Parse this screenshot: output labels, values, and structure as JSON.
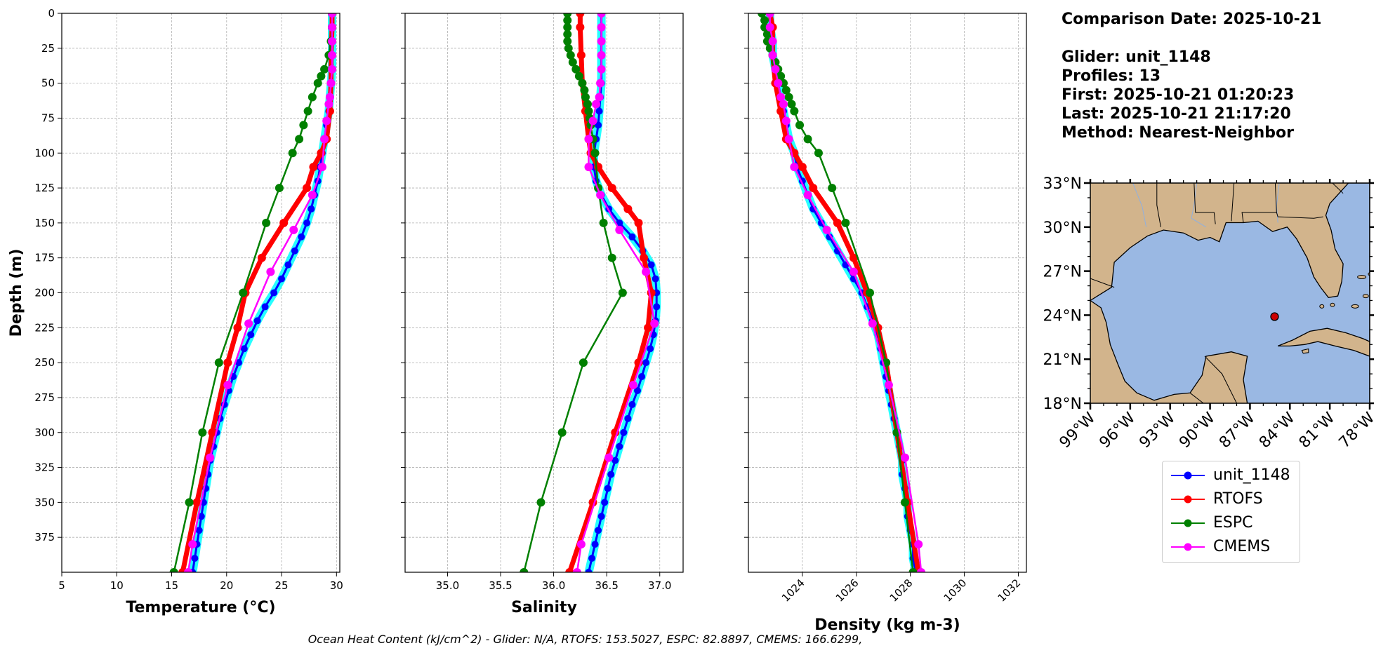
{
  "info": {
    "comparison_date": "Comparison Date: 2025-10-21",
    "glider": "Glider: unit_1148",
    "profiles": "Profiles: 13",
    "first": "First: 2025-10-21 01:20:23",
    "last": "Last: 2025-10-21 21:17:20",
    "method": "Method: Nearest-Neighbor"
  },
  "footer": "Ocean Heat Content (kJ/cm^2) - Glider: N/A,  RTOFS: 153.5027,  ESPC: 82.8897,  CMEMS: 166.6299,",
  "colors": {
    "glider": "#0000ff",
    "glider_halo": "#00ffff",
    "rtofs": "#ff0000",
    "espc": "#008000",
    "cmems": "#ff00ff",
    "land": "#d2b48c",
    "ocean": "#9ab8e3"
  },
  "legend": [
    {
      "label": "unit_1148",
      "color": "#0000ff"
    },
    {
      "label": "RTOFS",
      "color": "#ff0000"
    },
    {
      "label": "ESPC",
      "color": "#008000"
    },
    {
      "label": "CMEMS",
      "color": "#ff00ff"
    }
  ],
  "chart_data": [
    {
      "type": "line",
      "xlabel": "Temperature (°C)",
      "ylabel": "Depth (m)",
      "xlim": [
        5,
        30.3
      ],
      "ylim": [
        400,
        0
      ],
      "xticks": [
        5,
        10,
        15,
        20,
        25,
        30
      ],
      "yticks": [
        0,
        25,
        50,
        75,
        100,
        125,
        150,
        175,
        200,
        225,
        250,
        275,
        300,
        325,
        350,
        375
      ],
      "grid": true,
      "series": [
        {
          "name": "unit_1148",
          "depth": [
            0,
            10,
            20,
            30,
            40,
            50,
            60,
            70,
            80,
            90,
            100,
            110,
            120,
            130,
            140,
            150,
            160,
            170,
            180,
            190,
            200,
            210,
            220,
            230,
            240,
            250,
            260,
            270,
            280,
            290,
            300,
            310,
            320,
            330,
            340,
            350,
            360,
            370,
            380,
            390,
            400
          ],
          "values": [
            29.6,
            29.6,
            29.6,
            29.6,
            29.6,
            29.5,
            29.4,
            29.3,
            29.1,
            28.9,
            28.7,
            28.5,
            28.3,
            28.0,
            27.7,
            27.3,
            26.8,
            26.2,
            25.6,
            25.0,
            24.3,
            23.5,
            22.8,
            22.2,
            21.6,
            21.1,
            20.6,
            20.2,
            19.8,
            19.4,
            19.1,
            18.8,
            18.5,
            18.3,
            18.1,
            17.9,
            17.7,
            17.5,
            17.3,
            17.1,
            16.9
          ]
        },
        {
          "name": "RTOFS",
          "depth": [
            0,
            10,
            30,
            50,
            70,
            90,
            100,
            110,
            125,
            150,
            175,
            200,
            225,
            250,
            300,
            350,
            400
          ],
          "values": [
            29.6,
            29.6,
            29.5,
            29.5,
            29.4,
            29.1,
            28.6,
            27.9,
            27.3,
            25.2,
            23.2,
            21.7,
            21.0,
            20.1,
            18.7,
            17.3,
            16.0
          ]
        },
        {
          "name": "ESPC",
          "depth": [
            0,
            10,
            20,
            30,
            40,
            45,
            50,
            60,
            70,
            80,
            90,
            100,
            125,
            150,
            200,
            250,
            300,
            350,
            400
          ],
          "values": [
            29.6,
            29.6,
            29.5,
            29.3,
            28.9,
            28.6,
            28.3,
            27.8,
            27.4,
            27.0,
            26.6,
            26.0,
            24.8,
            23.6,
            21.5,
            19.3,
            17.8,
            16.6,
            15.2
          ]
        },
        {
          "name": "CMEMS",
          "depth": [
            0,
            10,
            20,
            30,
            40,
            50,
            60,
            65,
            77,
            90,
            110,
            130,
            155,
            185,
            222,
            266,
            318,
            380,
            400
          ],
          "values": [
            29.6,
            29.6,
            29.6,
            29.6,
            29.6,
            29.5,
            29.4,
            29.3,
            29.1,
            28.9,
            28.7,
            27.8,
            26.1,
            24.0,
            22.0,
            20.1,
            18.5,
            16.9,
            16.5
          ]
        }
      ]
    },
    {
      "type": "line",
      "xlabel": "Salinity",
      "ylim": [
        400,
        0
      ],
      "xlim": [
        34.6,
        37.22
      ],
      "xticks": [
        35.0,
        35.5,
        36.0,
        36.5,
        37.0
      ],
      "grid": true,
      "series": [
        {
          "name": "unit_1148",
          "depth": [
            0,
            10,
            20,
            30,
            40,
            50,
            60,
            70,
            80,
            90,
            100,
            110,
            120,
            130,
            140,
            150,
            160,
            170,
            180,
            190,
            200,
            210,
            220,
            230,
            240,
            250,
            260,
            270,
            280,
            290,
            300,
            310,
            320,
            330,
            340,
            350,
            360,
            370,
            380,
            390,
            400
          ],
          "values": [
            36.45,
            36.45,
            36.45,
            36.45,
            36.45,
            36.45,
            36.44,
            36.43,
            36.42,
            36.4,
            36.38,
            36.38,
            36.4,
            36.45,
            36.52,
            36.62,
            36.74,
            36.84,
            36.92,
            36.96,
            36.97,
            36.97,
            36.96,
            36.94,
            36.91,
            36.87,
            36.83,
            36.79,
            36.74,
            36.7,
            36.66,
            36.62,
            36.58,
            36.54,
            36.51,
            36.48,
            36.45,
            36.42,
            36.39,
            36.36,
            36.33
          ]
        },
        {
          "name": "RTOFS",
          "depth": [
            0,
            10,
            30,
            50,
            70,
            90,
            100,
            110,
            125,
            140,
            150,
            175,
            200,
            225,
            250,
            300,
            350,
            400
          ],
          "values": [
            36.25,
            36.25,
            36.26,
            36.27,
            36.3,
            36.33,
            36.35,
            36.42,
            36.55,
            36.7,
            36.8,
            36.85,
            36.92,
            36.89,
            36.8,
            36.58,
            36.37,
            36.15
          ]
        },
        {
          "name": "ESPC",
          "depth": [
            0,
            5,
            10,
            15,
            20,
            25,
            30,
            35,
            40,
            45,
            50,
            55,
            60,
            65,
            70,
            75,
            80,
            90,
            100,
            125,
            150,
            175,
            200,
            250,
            300,
            350,
            400
          ],
          "values": [
            36.13,
            36.13,
            36.13,
            36.13,
            36.13,
            36.14,
            36.16,
            36.18,
            36.21,
            36.24,
            36.27,
            36.29,
            36.3,
            36.32,
            36.33,
            36.34,
            36.35,
            36.37,
            36.39,
            36.42,
            36.47,
            36.55,
            36.65,
            36.28,
            36.08,
            35.88,
            35.72
          ]
        },
        {
          "name": "CMEMS",
          "depth": [
            0,
            10,
            20,
            30,
            40,
            50,
            60,
            65,
            77,
            90,
            110,
            130,
            155,
            185,
            222,
            266,
            318,
            380,
            400
          ],
          "values": [
            36.45,
            36.45,
            36.45,
            36.45,
            36.45,
            36.44,
            36.43,
            36.4,
            36.37,
            36.33,
            36.33,
            36.44,
            36.62,
            36.87,
            36.95,
            36.75,
            36.52,
            36.26,
            36.22
          ]
        }
      ]
    },
    {
      "type": "line",
      "xlabel": "Density (kg m-3)",
      "ylim": [
        400,
        0
      ],
      "xlim": [
        1022.0,
        1032.3
      ],
      "xticks": [
        1024,
        1026,
        1028,
        1030,
        1032
      ],
      "grid": true,
      "series": [
        {
          "name": "unit_1148",
          "depth": [
            0,
            10,
            20,
            30,
            40,
            50,
            60,
            70,
            80,
            90,
            100,
            110,
            120,
            130,
            140,
            150,
            160,
            170,
            180,
            190,
            200,
            210,
            220,
            230,
            240,
            250,
            260,
            270,
            280,
            290,
            300,
            310,
            320,
            330,
            340,
            350,
            360,
            370,
            380,
            390,
            400
          ],
          "values": [
            1022.8,
            1022.8,
            1022.9,
            1022.9,
            1023.0,
            1023.1,
            1023.2,
            1023.3,
            1023.4,
            1023.5,
            1023.7,
            1023.8,
            1024.0,
            1024.2,
            1024.4,
            1024.7,
            1025.0,
            1025.3,
            1025.6,
            1025.9,
            1026.2,
            1026.4,
            1026.6,
            1026.8,
            1026.9,
            1027.0,
            1027.1,
            1027.2,
            1027.3,
            1027.4,
            1027.5,
            1027.6,
            1027.7,
            1027.7,
            1027.8,
            1027.9,
            1027.9,
            1028.0,
            1028.1,
            1028.1,
            1028.2
          ]
        },
        {
          "name": "RTOFS",
          "depth": [
            0,
            10,
            30,
            50,
            70,
            90,
            100,
            110,
            125,
            150,
            175,
            200,
            225,
            250,
            300,
            350,
            400
          ],
          "values": [
            1022.8,
            1022.9,
            1022.9,
            1023.0,
            1023.2,
            1023.4,
            1023.7,
            1024.0,
            1024.4,
            1025.3,
            1025.9,
            1026.4,
            1026.8,
            1027.1,
            1027.5,
            1027.9,
            1028.3
          ]
        },
        {
          "name": "ESPC",
          "depth": [
            0,
            5,
            10,
            15,
            20,
            25,
            30,
            35,
            40,
            45,
            50,
            55,
            60,
            65,
            70,
            80,
            90,
            100,
            125,
            150,
            200,
            250,
            300,
            350,
            400
          ],
          "values": [
            1022.5,
            1022.6,
            1022.6,
            1022.7,
            1022.7,
            1022.8,
            1022.9,
            1023.0,
            1023.1,
            1023.2,
            1023.3,
            1023.4,
            1023.5,
            1023.6,
            1023.7,
            1023.9,
            1024.2,
            1024.6,
            1025.1,
            1025.6,
            1026.5,
            1027.1,
            1027.5,
            1027.8,
            1028.1
          ]
        },
        {
          "name": "CMEMS",
          "depth": [
            0,
            10,
            20,
            30,
            40,
            50,
            60,
            65,
            77,
            90,
            110,
            130,
            155,
            185,
            222,
            266,
            318,
            380,
            400
          ],
          "values": [
            1022.8,
            1022.8,
            1022.9,
            1022.9,
            1023.0,
            1023.1,
            1023.2,
            1023.3,
            1023.4,
            1023.5,
            1023.7,
            1024.2,
            1024.9,
            1025.9,
            1026.6,
            1027.2,
            1027.8,
            1028.3,
            1028.4
          ]
        }
      ]
    },
    {
      "type": "map",
      "lon_range": [
        -99,
        -78
      ],
      "lat_range": [
        18,
        33
      ],
      "lon_ticks": [
        "99°W",
        "96°W",
        "93°W",
        "90°W",
        "87°W",
        "84°W",
        "81°W",
        "78°W"
      ],
      "lat_ticks": [
        "33°N",
        "30°N",
        "27°N",
        "24°N",
        "21°N",
        "18°N"
      ],
      "glider_position": {
        "lon": -85.15,
        "lat": 23.9
      }
    }
  ]
}
